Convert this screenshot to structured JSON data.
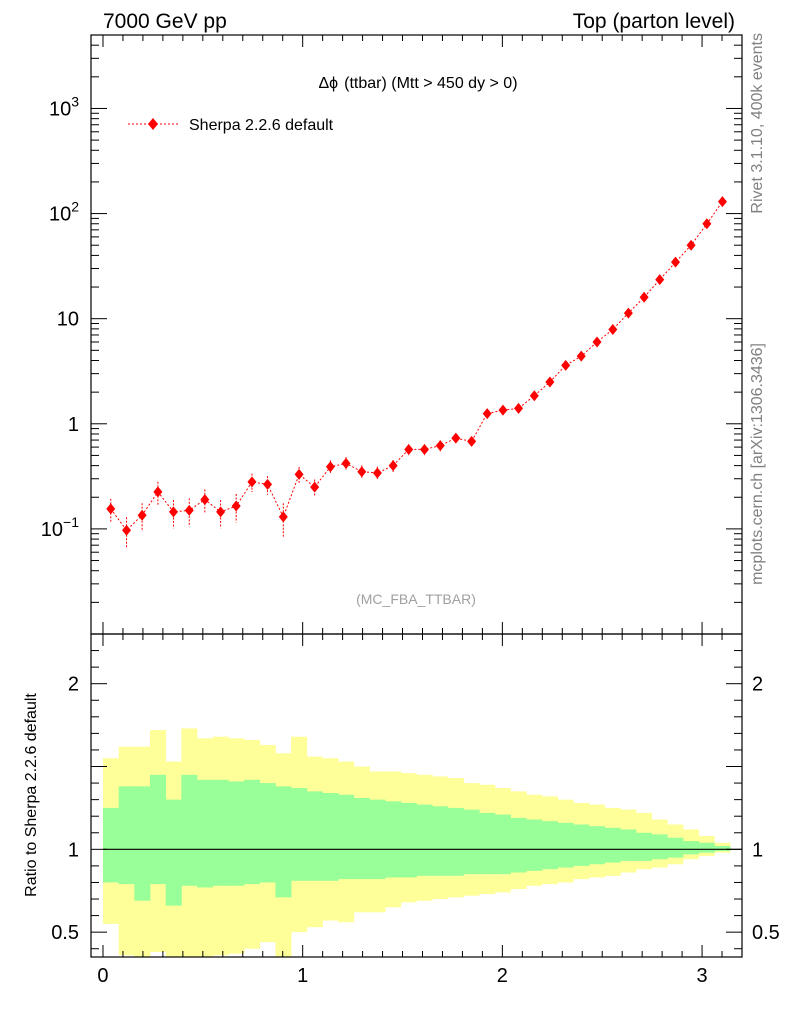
{
  "header": {
    "left": "7000 GeV pp",
    "right": "Top (parton level)"
  },
  "side_text": {
    "top": "Rivet 3.1.10,  400k events",
    "bottom": "mcplots.cern.ch [arXiv:1306.3436]"
  },
  "chart_data": [
    {
      "type": "scatter",
      "title_prefix": "Δϕ",
      "title": "(ttbar) (Mtt > 450 dy > 0)",
      "analysis": "(MC_FBA_TTBAR)",
      "yscale": "log",
      "xlim": [
        -0.06,
        3.2
      ],
      "ylim": [
        0.01,
        5000
      ],
      "ytick_values": [
        0.1,
        1,
        10,
        100,
        1000
      ],
      "ytick_labels": [
        "10^-1",
        "1",
        "10",
        "10^2",
        "10^3"
      ],
      "legend": {
        "placement": "top-left",
        "label": "Sherpa 2.2.6 default",
        "color": "#ff0000"
      },
      "series": [
        {
          "name": "Sherpa 2.2.6 default",
          "color": "#ff0000",
          "x": [
            0.039,
            0.118,
            0.196,
            0.275,
            0.353,
            0.432,
            0.51,
            0.589,
            0.667,
            0.746,
            0.824,
            0.903,
            0.982,
            1.06,
            1.139,
            1.217,
            1.296,
            1.374,
            1.453,
            1.531,
            1.61,
            1.689,
            1.767,
            1.846,
            1.924,
            2.003,
            2.081,
            2.16,
            2.238,
            2.317,
            2.395,
            2.474,
            2.553,
            2.631,
            2.71,
            2.788,
            2.867,
            2.945,
            3.024,
            3.102
          ],
          "y": [
            0.155,
            0.097,
            0.135,
            0.225,
            0.145,
            0.15,
            0.19,
            0.145,
            0.165,
            0.28,
            0.265,
            0.13,
            0.33,
            0.25,
            0.39,
            0.42,
            0.35,
            0.34,
            0.4,
            0.57,
            0.57,
            0.62,
            0.73,
            0.68,
            1.25,
            1.35,
            1.4,
            1.85,
            2.5,
            3.6,
            4.4,
            6.0,
            7.9,
            11.3,
            16.0,
            23.5,
            34.5,
            50.0,
            80.0,
            130.0
          ],
          "err_rel": [
            0.25,
            0.33,
            0.3,
            0.25,
            0.3,
            0.3,
            0.25,
            0.3,
            0.3,
            0.2,
            0.2,
            0.35,
            0.18,
            0.18,
            0.15,
            0.15,
            0.15,
            0.15,
            0.13,
            0.12,
            0.12,
            0.12,
            0.1,
            0.1,
            0.08,
            0.07,
            0.07,
            0.06,
            0.05,
            0.04,
            0.04,
            0.035,
            0.03,
            0.025,
            0.02,
            0.018,
            0.015,
            0.012,
            0.01,
            0.008
          ]
        }
      ]
    },
    {
      "type": "area",
      "ylabel": "Ratio to Sherpa 2.2.6 default",
      "xlim": [
        -0.06,
        3.2
      ],
      "ylim": [
        0.35,
        2.3
      ],
      "xtick_values": [
        0,
        1,
        2,
        3
      ],
      "ytick_values": [
        0.5,
        1,
        2
      ],
      "ytick_labels": [
        "0.5",
        "1",
        "2"
      ],
      "band_colors": {
        "outer": "#ffff99",
        "inner": "#99ff99",
        "line": "#000000"
      },
      "bin_edges": [
        0.0,
        0.0785,
        0.157,
        0.2355,
        0.314,
        0.3925,
        0.471,
        0.5495,
        0.628,
        0.7065,
        0.785,
        0.8635,
        0.942,
        1.0205,
        1.099,
        1.1775,
        1.256,
        1.3345,
        1.413,
        1.4915,
        1.57,
        1.6485,
        1.727,
        1.8055,
        1.884,
        1.9625,
        2.041,
        2.1195,
        2.198,
        2.2765,
        2.355,
        2.4335,
        2.512,
        2.5905,
        2.669,
        2.7475,
        2.826,
        2.9045,
        2.983,
        3.0615,
        3.14
      ],
      "outer_upper": [
        1.55,
        1.62,
        1.62,
        1.72,
        1.53,
        1.73,
        1.67,
        1.68,
        1.67,
        1.66,
        1.63,
        1.58,
        1.68,
        1.56,
        1.55,
        1.53,
        1.5,
        1.47,
        1.47,
        1.46,
        1.45,
        1.44,
        1.43,
        1.4,
        1.39,
        1.37,
        1.35,
        1.33,
        1.32,
        1.3,
        1.28,
        1.27,
        1.25,
        1.24,
        1.22,
        1.18,
        1.15,
        1.12,
        1.08,
        1.04
      ],
      "outer_lower": [
        0.55,
        0.36,
        0.35,
        0.38,
        0.28,
        0.35,
        0.35,
        0.36,
        0.37,
        0.4,
        0.44,
        0.35,
        0.5,
        0.53,
        0.57,
        0.56,
        0.62,
        0.62,
        0.65,
        0.68,
        0.69,
        0.7,
        0.71,
        0.72,
        0.73,
        0.74,
        0.76,
        0.78,
        0.79,
        0.8,
        0.82,
        0.83,
        0.84,
        0.86,
        0.88,
        0.89,
        0.91,
        0.94,
        0.96,
        0.98
      ],
      "inner_upper": [
        1.25,
        1.38,
        1.38,
        1.45,
        1.3,
        1.45,
        1.42,
        1.42,
        1.41,
        1.42,
        1.4,
        1.38,
        1.37,
        1.35,
        1.34,
        1.33,
        1.31,
        1.3,
        1.29,
        1.28,
        1.27,
        1.26,
        1.25,
        1.24,
        1.22,
        1.21,
        1.19,
        1.18,
        1.17,
        1.16,
        1.15,
        1.14,
        1.13,
        1.12,
        1.1,
        1.09,
        1.07,
        1.05,
        1.04,
        1.02
      ],
      "inner_lower": [
        0.8,
        0.79,
        0.69,
        0.79,
        0.66,
        0.78,
        0.77,
        0.78,
        0.78,
        0.79,
        0.8,
        0.71,
        0.81,
        0.81,
        0.81,
        0.82,
        0.82,
        0.82,
        0.83,
        0.83,
        0.84,
        0.84,
        0.84,
        0.85,
        0.85,
        0.85,
        0.86,
        0.87,
        0.88,
        0.89,
        0.9,
        0.91,
        0.92,
        0.93,
        0.93,
        0.94,
        0.95,
        0.97,
        0.98,
        0.99
      ]
    }
  ]
}
